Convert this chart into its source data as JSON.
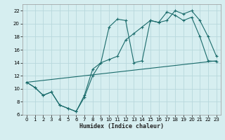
{
  "xlabel": "Humidex (Indice chaleur)",
  "bg_color": "#d6eef0",
  "grid_color": "#b8d8dc",
  "line_color": "#1a6b6b",
  "xlim": [
    -0.5,
    23.5
  ],
  "ylim": [
    6,
    23
  ],
  "xticks": [
    0,
    1,
    2,
    3,
    4,
    5,
    6,
    7,
    8,
    9,
    10,
    11,
    12,
    13,
    14,
    15,
    16,
    17,
    18,
    19,
    20,
    21,
    22,
    23
  ],
  "yticks": [
    6,
    8,
    10,
    12,
    14,
    16,
    18,
    20,
    22
  ],
  "series1_x": [
    0,
    1,
    2,
    3,
    4,
    5,
    6,
    7,
    8,
    9,
    10,
    11,
    12,
    13,
    14,
    15,
    16,
    17,
    18,
    19,
    20,
    21,
    22,
    23
  ],
  "series1_y": [
    11,
    10.2,
    9,
    9.5,
    7.5,
    7,
    6.5,
    8.7,
    12,
    14,
    14.5,
    15,
    17.5,
    18.5,
    19.5,
    20.5,
    20.2,
    20.5,
    22,
    21.5,
    22,
    20.5,
    18,
    15
  ],
  "series2_x": [
    0,
    1,
    2,
    3,
    4,
    5,
    6,
    7,
    8,
    9,
    10,
    11,
    12,
    13,
    14,
    15,
    16,
    17,
    18,
    19,
    20,
    21,
    22,
    23
  ],
  "series2_y": [
    11,
    10.2,
    9,
    9.5,
    7.5,
    7,
    6.5,
    9,
    13,
    14,
    19.5,
    20.7,
    20.5,
    14,
    14.3,
    20.5,
    20.2,
    21.8,
    21.3,
    20.5,
    21,
    18,
    14.3,
    14.2
  ],
  "series3_x": [
    0,
    23
  ],
  "series3_y": [
    11,
    14.3
  ]
}
